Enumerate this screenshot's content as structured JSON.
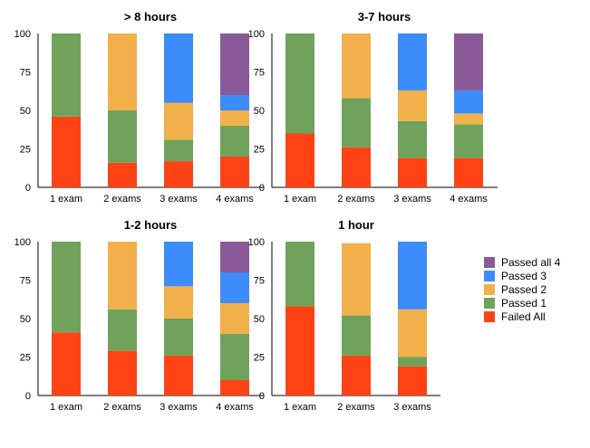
{
  "legend": {
    "items": [
      {
        "label": "Passed all 4",
        "color": "#8a5a98"
      },
      {
        "label": "Passed 3",
        "color": "#3d8cfc"
      },
      {
        "label": "Passed 2",
        "color": "#f2b04a"
      },
      {
        "label": "Passed 1",
        "color": "#6fa35c"
      },
      {
        "label": "Failed All",
        "color": "#ff4314"
      }
    ]
  },
  "chart_data": [
    {
      "type": "bar",
      "stacked": true,
      "title": "> 8 hours",
      "categories": [
        "1 exam",
        "2 exams",
        "3 exams",
        "4 exams"
      ],
      "ylim": [
        0,
        100
      ],
      "yticks": [
        "0",
        "25",
        "50",
        "75",
        "100"
      ],
      "series": [
        {
          "name": "Failed All",
          "values": [
            46,
            16,
            17,
            20
          ]
        },
        {
          "name": "Passed 1",
          "values": [
            54,
            34,
            14,
            20
          ]
        },
        {
          "name": "Passed 2",
          "values": [
            0,
            50,
            24,
            10
          ]
        },
        {
          "name": "Passed 3",
          "values": [
            0,
            0,
            45,
            10
          ]
        },
        {
          "name": "Passed all 4",
          "values": [
            0,
            0,
            0,
            40
          ]
        }
      ]
    },
    {
      "type": "bar",
      "stacked": true,
      "title": "3-7 hours",
      "categories": [
        "1 exam",
        "2 exams",
        "3 exams",
        "4 exams"
      ],
      "ylim": [
        0,
        100
      ],
      "yticks": [
        "0",
        "25",
        "50",
        "75",
        "100"
      ],
      "series": [
        {
          "name": "Failed All",
          "values": [
            35,
            26,
            19,
            19
          ]
        },
        {
          "name": "Passed 1",
          "values": [
            65,
            32,
            24,
            22
          ]
        },
        {
          "name": "Passed 2",
          "values": [
            0,
            42,
            20,
            7
          ]
        },
        {
          "name": "Passed 3",
          "values": [
            0,
            0,
            37,
            15
          ]
        },
        {
          "name": "Passed all 4",
          "values": [
            0,
            0,
            0,
            37
          ]
        }
      ]
    },
    {
      "type": "bar",
      "stacked": true,
      "title": "1-2 hours",
      "categories": [
        "1 exam",
        "2 exams",
        "3 exams",
        "4 exams"
      ],
      "ylim": [
        0,
        100
      ],
      "yticks": [
        "0",
        "25",
        "50",
        "75",
        "100"
      ],
      "series": [
        {
          "name": "Failed All",
          "values": [
            41,
            29,
            26,
            10
          ]
        },
        {
          "name": "Passed 1",
          "values": [
            59,
            27,
            24,
            30
          ]
        },
        {
          "name": "Passed 2",
          "values": [
            0,
            44,
            21,
            20
          ]
        },
        {
          "name": "Passed 3",
          "values": [
            0,
            0,
            29,
            20
          ]
        },
        {
          "name": "Passed all 4",
          "values": [
            0,
            0,
            0,
            20
          ]
        }
      ]
    },
    {
      "type": "bar",
      "stacked": true,
      "title": "1 hour",
      "categories": [
        "1 exam",
        "2 exams",
        "3 exams"
      ],
      "ylim": [
        0,
        100
      ],
      "yticks": [
        "0",
        "25",
        "50",
        "75",
        "100"
      ],
      "series": [
        {
          "name": "Failed All",
          "values": [
            58,
            26,
            19
          ]
        },
        {
          "name": "Passed 1",
          "values": [
            42,
            26,
            6
          ]
        },
        {
          "name": "Passed 2",
          "values": [
            0,
            47,
            31
          ]
        },
        {
          "name": "Passed 3",
          "values": [
            0,
            0,
            44
          ]
        },
        {
          "name": "Passed all 4",
          "values": [
            0,
            0,
            0
          ]
        }
      ]
    }
  ]
}
